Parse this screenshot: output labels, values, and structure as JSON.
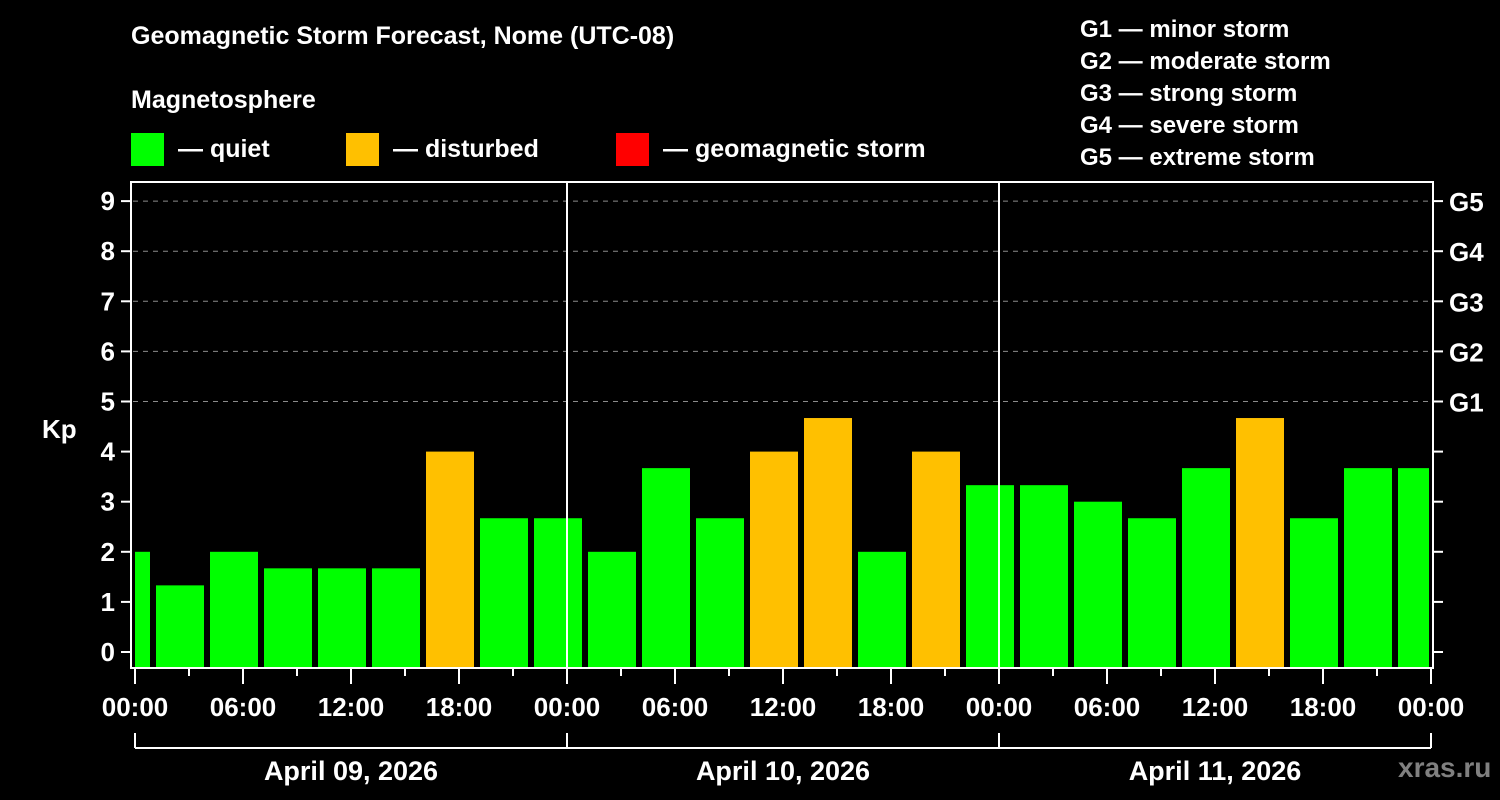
{
  "header": {
    "title": "Geomagnetic Storm Forecast, Nome (UTC-08)",
    "subtitle": "Magnetosphere"
  },
  "legend": [
    {
      "label": "— quiet",
      "color": "#00ff00"
    },
    {
      "label": "— disturbed",
      "color": "#ffc000"
    },
    {
      "label": "— geomagnetic storm",
      "color": "#ff0000"
    }
  ],
  "g_scale": [
    "G1 — minor storm",
    "G2 — moderate storm",
    "G3 — strong storm",
    "G4 — severe storm",
    "G5 — extreme storm"
  ],
  "watermark": "xras.ru",
  "chart_data": {
    "type": "bar",
    "title": "Geomagnetic Storm Forecast, Nome (UTC-08)",
    "subtitle": "Magnetosphere",
    "xlabel": "",
    "ylabel": "Kp",
    "ylim": [
      -0.3,
      9.6
    ],
    "y_ticks": [
      0,
      1,
      2,
      3,
      4,
      5,
      6,
      7,
      8,
      9
    ],
    "y2_ticks": [
      {
        "value": 5,
        "label": "G1"
      },
      {
        "value": 6,
        "label": "G2"
      },
      {
        "value": 7,
        "label": "G3"
      },
      {
        "value": 8,
        "label": "G4"
      },
      {
        "value": 9,
        "label": "G5"
      }
    ],
    "grid": {
      "horizontal_dashed_at": [
        5,
        6,
        7,
        8,
        9
      ]
    },
    "x_tick_labels": [
      "00:00",
      "06:00",
      "12:00",
      "18:00",
      "00:00",
      "06:00",
      "12:00",
      "18:00",
      "00:00",
      "06:00",
      "12:00",
      "18:00",
      "00:00"
    ],
    "date_labels": [
      "April 09, 2026",
      "April 10, 2026",
      "April 11, 2026"
    ],
    "bar_interval_hours": 3,
    "bar_center_offset_hours": -0.5,
    "colors": {
      "quiet": "#00ff00",
      "disturbed": "#ffc000",
      "storm": "#ff0000"
    },
    "categories": [
      "Apr09 -00:30",
      "Apr09 02:30",
      "Apr09 05:30",
      "Apr09 08:30",
      "Apr09 11:30",
      "Apr09 14:30",
      "Apr09 17:30",
      "Apr09 20:30",
      "Apr09 23:30",
      "Apr10 02:30",
      "Apr10 05:30",
      "Apr10 08:30",
      "Apr10 11:30",
      "Apr10 14:30",
      "Apr10 17:30",
      "Apr10 20:30",
      "Apr10 23:30",
      "Apr11 02:30",
      "Apr11 05:30",
      "Apr11 08:30",
      "Apr11 11:30",
      "Apr11 14:30",
      "Apr11 17:30",
      "Apr11 20:30",
      "Apr11 23:30"
    ],
    "values": [
      2.0,
      1.33,
      2.0,
      1.67,
      1.67,
      1.67,
      4.0,
      2.67,
      2.67,
      2.0,
      3.67,
      2.67,
      4.0,
      4.67,
      2.0,
      4.0,
      3.33,
      3.33,
      3.0,
      2.67,
      3.67,
      4.67,
      2.67,
      3.67,
      3.67
    ],
    "status": [
      "quiet",
      "quiet",
      "quiet",
      "quiet",
      "quiet",
      "quiet",
      "disturbed",
      "quiet",
      "quiet",
      "quiet",
      "quiet",
      "quiet",
      "disturbed",
      "disturbed",
      "quiet",
      "disturbed",
      "quiet",
      "quiet",
      "quiet",
      "quiet",
      "quiet",
      "disturbed",
      "quiet",
      "quiet",
      "quiet"
    ]
  }
}
